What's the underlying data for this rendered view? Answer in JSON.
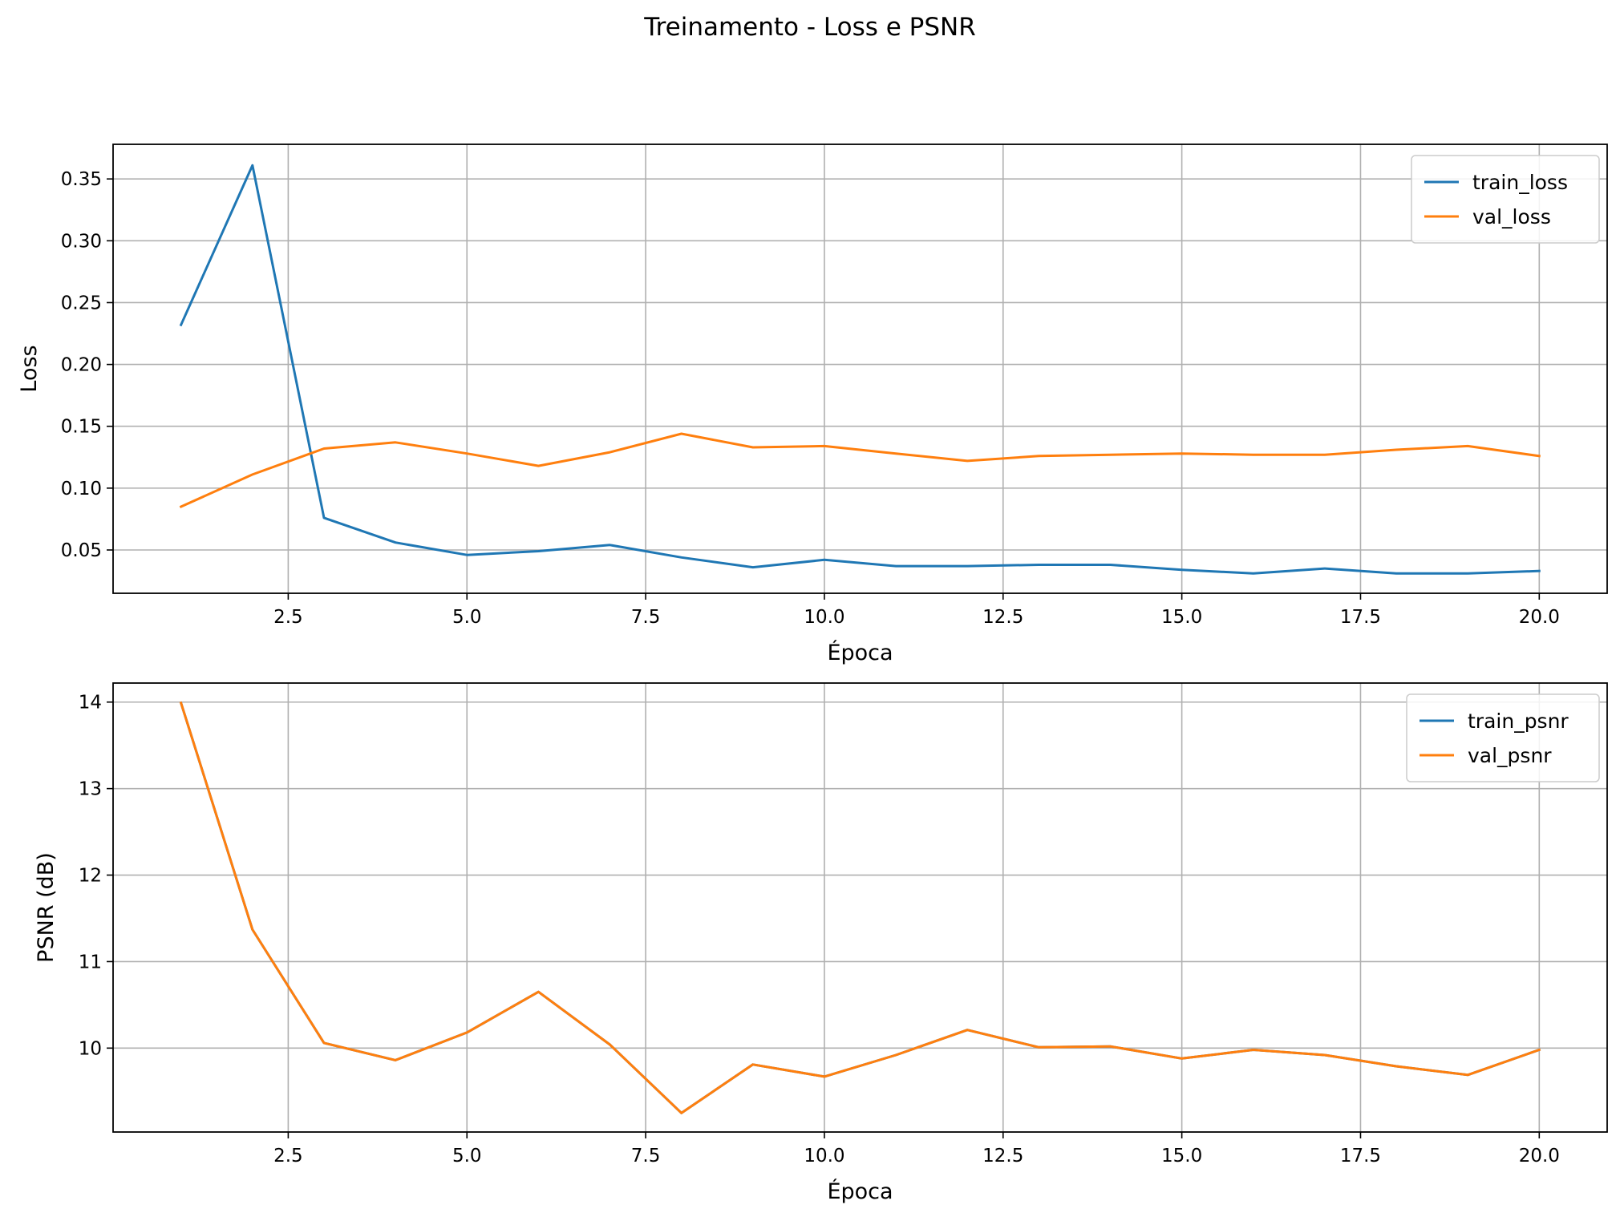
{
  "figure": {
    "title": "Treinamento - Loss e PSNR"
  },
  "colors": {
    "train": "#1f77b4",
    "val": "#ff7f0e",
    "grid": "#b0b0b0",
    "axes": "#000000"
  },
  "chart_data": [
    {
      "type": "line",
      "title": "",
      "xlabel": "Época",
      "ylabel": "Loss",
      "xlim": [
        0.05,
        20.95
      ],
      "ylim": [
        0.015,
        0.378
      ],
      "x_ticks": [
        2.5,
        5.0,
        7.5,
        10.0,
        12.5,
        15.0,
        17.5,
        20.0
      ],
      "x_tick_labels": [
        "2.5",
        "5.0",
        "7.5",
        "10.0",
        "12.5",
        "15.0",
        "17.5",
        "20.0"
      ],
      "y_ticks": [
        0.05,
        0.1,
        0.15,
        0.2,
        0.25,
        0.3,
        0.35
      ],
      "y_tick_labels": [
        "0.05",
        "0.10",
        "0.15",
        "0.20",
        "0.25",
        "0.30",
        "0.35"
      ],
      "grid": true,
      "legend_position": "top-right",
      "x": [
        1,
        2,
        3,
        4,
        5,
        6,
        7,
        8,
        9,
        10,
        11,
        12,
        13,
        14,
        15,
        16,
        17,
        18,
        19,
        20
      ],
      "series": [
        {
          "name": "train_loss",
          "color": "#1f77b4",
          "values": [
            0.232,
            0.361,
            0.076,
            0.056,
            0.046,
            0.049,
            0.054,
            0.044,
            0.036,
            0.042,
            0.037,
            0.037,
            0.038,
            0.038,
            0.034,
            0.031,
            0.035,
            0.031,
            0.031,
            0.033
          ]
        },
        {
          "name": "val_loss",
          "color": "#ff7f0e",
          "values": [
            0.085,
            0.111,
            0.132,
            0.137,
            0.128,
            0.118,
            0.129,
            0.144,
            0.133,
            0.134,
            0.128,
            0.122,
            0.126,
            0.127,
            0.128,
            0.127,
            0.127,
            0.131,
            0.134,
            0.126
          ]
        }
      ]
    },
    {
      "type": "line",
      "title": "",
      "xlabel": "Época",
      "ylabel": "PSNR (dB)",
      "xlim": [
        0.05,
        20.95
      ],
      "ylim": [
        9.03,
        14.22
      ],
      "x_ticks": [
        2.5,
        5.0,
        7.5,
        10.0,
        12.5,
        15.0,
        17.5,
        20.0
      ],
      "x_tick_labels": [
        "2.5",
        "5.0",
        "7.5",
        "10.0",
        "12.5",
        "15.0",
        "17.5",
        "20.0"
      ],
      "y_ticks": [
        10,
        11,
        12,
        13,
        14
      ],
      "y_tick_labels": [
        "10",
        "11",
        "12",
        "13",
        "14"
      ],
      "grid": true,
      "legend_position": "top-right",
      "x": [
        1,
        2,
        3,
        4,
        5,
        6,
        7,
        8,
        9,
        10,
        11,
        12,
        13,
        14,
        15,
        16,
        17,
        18,
        19,
        20
      ],
      "series": [
        {
          "name": "train_psnr",
          "color": "#1f77b4",
          "values": [
            13.99,
            11.37,
            10.06,
            9.86,
            10.18,
            10.65,
            10.04,
            9.25,
            9.81,
            9.67,
            9.92,
            10.21,
            10.01,
            10.02,
            9.88,
            9.98,
            9.92,
            9.79,
            9.69,
            9.98
          ]
        },
        {
          "name": "val_psnr",
          "color": "#ff7f0e",
          "values": [
            13.99,
            11.37,
            10.06,
            9.86,
            10.18,
            10.65,
            10.04,
            9.25,
            9.81,
            9.67,
            9.92,
            10.21,
            10.01,
            10.02,
            9.88,
            9.98,
            9.92,
            9.79,
            9.69,
            9.98
          ]
        }
      ]
    }
  ]
}
